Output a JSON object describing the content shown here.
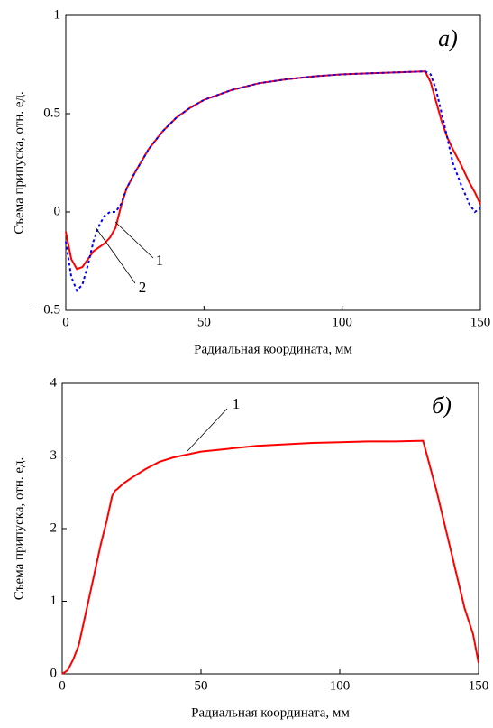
{
  "chart_data": [
    {
      "type": "line",
      "panel_label": "а)",
      "xlabel": "Радиальная координата, мм",
      "ylabel": "Съема припуска, отн. ед.",
      "x": [
        0,
        2,
        4,
        6,
        8,
        10,
        12,
        14,
        16,
        18,
        20,
        22,
        25,
        30,
        35,
        40,
        45,
        50,
        60,
        70,
        80,
        90,
        100,
        110,
        120,
        130,
        132,
        134,
        136,
        138,
        140,
        143,
        146,
        148,
        150
      ],
      "series": [
        {
          "color": "#ff0000",
          "dash": "solid",
          "values": [
            -0.1,
            -0.24,
            -0.29,
            -0.28,
            -0.24,
            -0.2,
            -0.18,
            -0.16,
            -0.13,
            -0.08,
            0.03,
            0.12,
            0.2,
            0.32,
            0.41,
            0.48,
            0.53,
            0.57,
            0.62,
            0.655,
            0.675,
            0.69,
            0.7,
            0.705,
            0.71,
            0.715,
            0.66,
            0.56,
            0.46,
            0.38,
            0.32,
            0.24,
            0.15,
            0.1,
            0.04
          ]
        },
        {
          "color": "#0000ff",
          "dash": "dotted",
          "values": [
            -0.15,
            -0.33,
            -0.4,
            -0.37,
            -0.27,
            -0.15,
            -0.07,
            -0.02,
            0,
            0,
            0.04,
            0.12,
            0.2,
            0.32,
            0.41,
            0.48,
            0.53,
            0.57,
            0.62,
            0.655,
            0.675,
            0.69,
            0.7,
            0.705,
            0.71,
            0.715,
            0.7,
            0.62,
            0.5,
            0.38,
            0.25,
            0.14,
            0.04,
            0,
            0.02
          ]
        }
      ],
      "annotations": [
        "1",
        "2"
      ],
      "xlim": [
        0,
        150
      ],
      "xticks": [
        0,
        50,
        100,
        150
      ],
      "ylim": [
        -0.5,
        1
      ],
      "yticks": [
        {
          "value": -0.5,
          "label": "− 0.5"
        },
        0,
        0.5,
        1
      ]
    },
    {
      "type": "line",
      "panel_label": "б)",
      "xlabel": "Радиальная координата, мм",
      "ylabel": "Съема припуска, отн. ед.",
      "x": [
        0,
        2,
        4,
        6,
        8,
        10,
        12,
        14,
        16,
        18,
        19,
        20,
        22,
        25,
        30,
        35,
        40,
        45,
        50,
        60,
        70,
        80,
        90,
        100,
        110,
        120,
        130,
        135,
        140,
        145,
        148,
        150
      ],
      "series": [
        {
          "color": "#ff0000",
          "dash": "solid",
          "values": [
            0,
            0.05,
            0.2,
            0.4,
            0.75,
            1.1,
            1.45,
            1.8,
            2.1,
            2.45,
            2.52,
            2.55,
            2.62,
            2.7,
            2.82,
            2.92,
            2.98,
            3.02,
            3.06,
            3.1,
            3.14,
            3.16,
            3.18,
            3.19,
            3.2,
            3.2,
            3.21,
            2.5,
            1.7,
            0.9,
            0.55,
            0.15
          ]
        }
      ],
      "annotations": [
        "1"
      ],
      "xlim": [
        0,
        150
      ],
      "xticks": [
        0,
        50,
        100,
        150
      ],
      "ylim": [
        0,
        4
      ],
      "yticks": [
        0,
        1,
        2,
        3,
        4
      ]
    }
  ]
}
